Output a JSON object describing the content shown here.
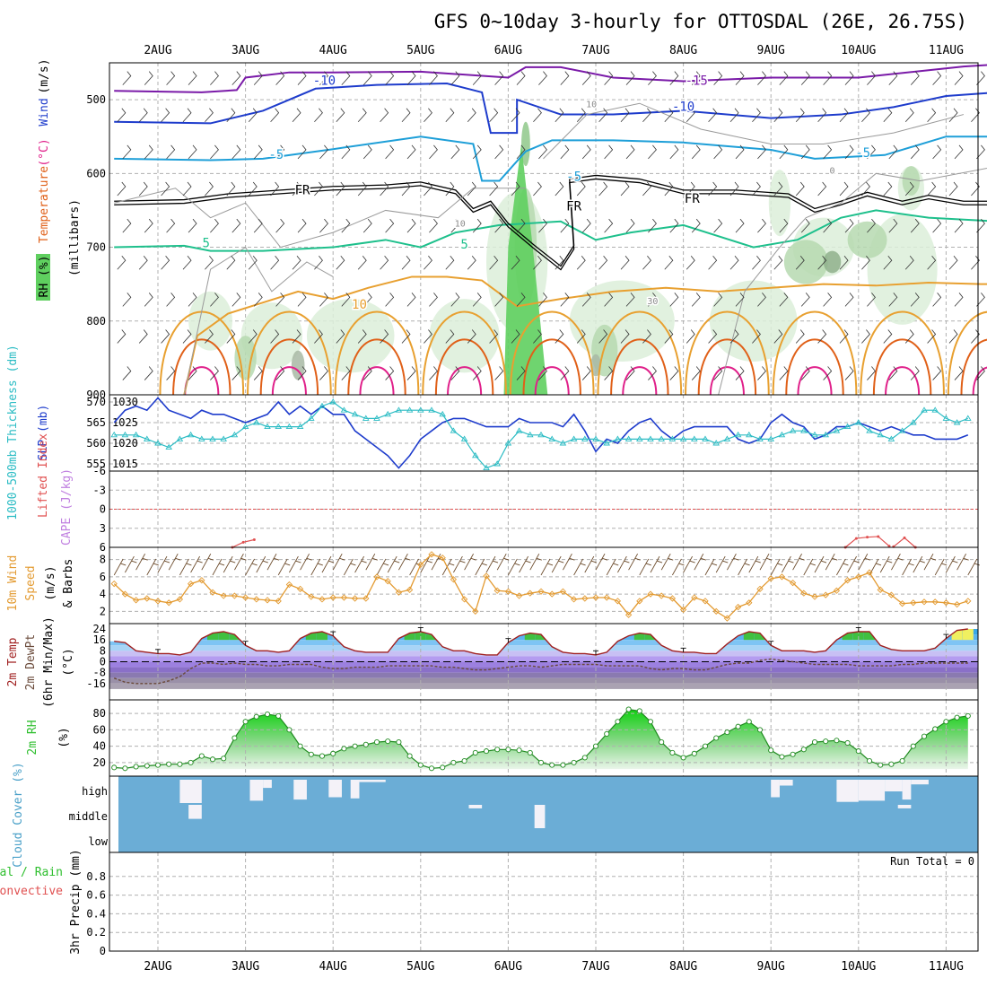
{
  "title": "GFS 0~10day 3-hourly for OTTOSDAL (26E, 26.75S)",
  "dates": [
    "2AUG",
    "3AUG",
    "4AUG",
    "5AUG",
    "6AUG",
    "7AUG",
    "8AUG",
    "9AUG",
    "10AUG",
    "11AUG"
  ],
  "colors": {
    "slp": "#1e3ccc",
    "thickness": "#2bbcc4",
    "wind10m": "#e39a30",
    "barb10m": "#6b4a2a",
    "lifted": "#e05050",
    "cape": "#c080e0",
    "rh": "#2fbf2f",
    "cloud": "#6badd6",
    "cloudgap": "#f4f2f8"
  },
  "chart_data": [
    {
      "id": "upper-air",
      "type": "contour",
      "ylabel_parts": [
        "RH (%)",
        "Temperature",
        "(°C)",
        "Wind",
        "(m/s)",
        "(millibars)"
      ],
      "yticks": [
        500,
        600,
        700,
        800,
        900
      ],
      "ylim": [
        900,
        450
      ],
      "contour_labels": [
        {
          "text": "-10",
          "x": 1.9,
          "p": 480
        },
        {
          "text": "-15",
          "x": 6.15,
          "p": 480
        },
        {
          "text": "-10",
          "x": 6.0,
          "p": 515
        },
        {
          "text": "-5",
          "x": 1.35,
          "p": 580
        },
        {
          "text": "-5",
          "x": 4.75,
          "p": 610
        },
        {
          "text": "-5",
          "x": 8.05,
          "p": 578
        },
        {
          "text": "FR",
          "x": 1.65,
          "p": 628
        },
        {
          "text": "FR",
          "x": 4.75,
          "p": 650
        },
        {
          "text": "FR",
          "x": 6.1,
          "p": 640
        },
        {
          "text": "5",
          "x": 0.55,
          "p": 700
        },
        {
          "text": "5",
          "x": 3.5,
          "p": 702
        },
        {
          "text": "10",
          "x": 2.3,
          "p": 783
        },
        {
          "text": "30",
          "x": 5.65,
          "p": 777
        },
        {
          "text": "10",
          "x": 4.95,
          "p": 510
        },
        {
          "text": "10",
          "x": 3.45,
          "p": 672
        },
        {
          "text": "0",
          "x": 7.7,
          "p": 600
        }
      ]
    },
    {
      "id": "slp-thickness",
      "type": "line",
      "ylabel_left": "1000-500mb Thickness (dm)",
      "ylabel_right": "SLP (mb)",
      "y_left_ticks": [
        555,
        560,
        565,
        570
      ],
      "y_right_ticks": [
        1015,
        1020,
        1025,
        1030
      ],
      "series": [
        {
          "name": "SLP (mb)",
          "y_axis": "right",
          "values": [
            1025,
            1028,
            1029,
            1028,
            1031,
            1028,
            1027,
            1026,
            1028,
            1027,
            1027,
            1026,
            1025,
            1026,
            1027,
            1030,
            1027,
            1029,
            1027,
            1029,
            1027,
            1027,
            1023,
            1021,
            1019,
            1017,
            1014,
            1017,
            1021,
            1023,
            1025,
            1026,
            1026,
            1025,
            1024,
            1024,
            1024,
            1026,
            1025,
            1025,
            1025,
            1024,
            1027,
            1023,
            1018,
            1021,
            1020,
            1023,
            1025,
            1026,
            1023,
            1021,
            1023,
            1024,
            1024,
            1024,
            1024,
            1021,
            1020,
            1021,
            1025,
            1027,
            1025,
            1024,
            1021,
            1022,
            1024,
            1024,
            1025,
            1024,
            1023,
            1024,
            1023,
            1022,
            1022,
            1021,
            1021,
            1021,
            1022
          ]
        },
        {
          "name": "1000-500mb Thickness (dm)",
          "y_axis": "left",
          "values": [
            562,
            562,
            562,
            561,
            560,
            559,
            561,
            562,
            561,
            561,
            561,
            562,
            564,
            565,
            564,
            564,
            564,
            564,
            566,
            569,
            570,
            568,
            567,
            566,
            566,
            567,
            568,
            568,
            568,
            568,
            567,
            563,
            561,
            557,
            554,
            555,
            560,
            563,
            562,
            562,
            561,
            560,
            561,
            561,
            561,
            560,
            561,
            561,
            561,
            561,
            561,
            561,
            561,
            561,
            561,
            560,
            561,
            562,
            562,
            561,
            561,
            562,
            563,
            563,
            562,
            562,
            563,
            564,
            565,
            563,
            562,
            561,
            563,
            565,
            568,
            568,
            566,
            565,
            566
          ]
        }
      ]
    },
    {
      "id": "stability",
      "type": "line",
      "ylabel_parts": [
        "Lifted Index",
        "CAPE (J/kg)"
      ],
      "yticks": [
        -6,
        -3,
        0,
        3,
        6
      ],
      "ytick_labels": [
        "-6",
        "-3",
        "0",
        "3",
        "6"
      ],
      "series": [
        {
          "name": "Lifted Index",
          "segments": [
            {
              "x0": 0.85,
              "values": [
                6.0,
                5.2,
                4.8
              ]
            },
            {
              "x0": 7.85,
              "values": [
                6.0,
                4.6,
                4.4,
                4.3,
                5.8
              ]
            },
            {
              "x0": 8.4,
              "values": [
                5.9,
                4.5,
                6.0
              ]
            }
          ]
        }
      ]
    },
    {
      "id": "wind10m",
      "type": "line",
      "ylabel_parts": [
        "10m Wind",
        "Speed",
        "(m/s)",
        "& Barbs"
      ],
      "yticks": [
        2,
        4,
        6,
        8
      ],
      "series": [
        {
          "name": "10m Wind Speed",
          "values": [
            5.2,
            4.0,
            3.3,
            3.5,
            3.2,
            3.0,
            3.4,
            5.2,
            5.6,
            4.2,
            3.8,
            3.8,
            3.6,
            3.4,
            3.3,
            3.2,
            5.1,
            4.6,
            3.7,
            3.4,
            3.6,
            3.6,
            3.5,
            3.5,
            6.0,
            5.5,
            4.2,
            4.5,
            7.4,
            8.6,
            8.2,
            5.7,
            3.4,
            2.0,
            6.1,
            4.4,
            4.3,
            3.8,
            4.1,
            4.3,
            4.0,
            4.3,
            3.4,
            3.5,
            3.6,
            3.6,
            3.2,
            1.6,
            3.2,
            4.0,
            3.8,
            3.5,
            2.2,
            3.6,
            3.2,
            2.0,
            1.2,
            2.5,
            3.0,
            4.6,
            5.8,
            6.0,
            5.3,
            4.1,
            3.7,
            3.9,
            4.4,
            5.6,
            6.0,
            6.5,
            4.5,
            3.9,
            2.9,
            3.0,
            3.1,
            3.1,
            3.0,
            2.8,
            3.2
          ]
        }
      ]
    },
    {
      "id": "temp2m",
      "type": "area",
      "ylabel_parts": [
        "2m Temp",
        "2m DewPt",
        "(6hr Min/Max)",
        "(°C)"
      ],
      "yticks": [
        -16,
        -8,
        0,
        8,
        16,
        24
      ],
      "series": [
        {
          "name": "2m Temp",
          "values": [
            15,
            14,
            8,
            7,
            6,
            6,
            5,
            7,
            17,
            21,
            22,
            20,
            12,
            8,
            8,
            7,
            8,
            17,
            21,
            22,
            19,
            11,
            8,
            7,
            7,
            7,
            17,
            21,
            22,
            20,
            11,
            8,
            8,
            6,
            5,
            5,
            14,
            19,
            21,
            20,
            11,
            7,
            6,
            6,
            5,
            7,
            15,
            19,
            21,
            20,
            12,
            8,
            7,
            7,
            6,
            6,
            13,
            19,
            22,
            21,
            12,
            8,
            8,
            8,
            7,
            8,
            16,
            21,
            22,
            22,
            12,
            9,
            8,
            8,
            8,
            10,
            17,
            23,
            24
          ]
        },
        {
          "name": "2m DewPt",
          "values": [
            -12,
            -15,
            -16,
            -16,
            -16,
            -14,
            -11,
            -5,
            -1,
            -1,
            -2,
            -1,
            -2,
            -2,
            -3,
            -3,
            -2,
            -2,
            -2,
            -4,
            -5,
            -5,
            -4,
            -4,
            -4,
            -3,
            -3,
            -3,
            -3,
            -3,
            -4,
            -4,
            -5,
            -6,
            -6,
            -5,
            -4,
            -3,
            -3,
            -4,
            -3,
            -2,
            -2,
            -2,
            -2,
            -3,
            -3,
            -3,
            -3,
            -5,
            -6,
            -5,
            -5,
            -6,
            -6,
            -4,
            -2,
            -1,
            -1,
            1,
            2,
            1,
            0,
            -1,
            -2,
            -2,
            -2,
            -2,
            -3,
            -3,
            -3,
            -3,
            -2,
            -2,
            -1,
            -1,
            -1,
            -1,
            -1
          ]
        }
      ]
    },
    {
      "id": "rh2m",
      "type": "area",
      "ylabel_parts": [
        "2m RH",
        "(%)"
      ],
      "yticks": [
        20,
        40,
        60,
        80
      ],
      "series": [
        {
          "name": "2m RH",
          "values": [
            14,
            13,
            15,
            16,
            17,
            18,
            18,
            20,
            28,
            24,
            25,
            50,
            70,
            76,
            79,
            77,
            60,
            40,
            30,
            28,
            31,
            37,
            40,
            42,
            45,
            46,
            45,
            28,
            17,
            13,
            14,
            20,
            22,
            32,
            34,
            36,
            36,
            35,
            32,
            20,
            17,
            17,
            20,
            26,
            40,
            55,
            70,
            85,
            83,
            70,
            45,
            32,
            26,
            31,
            40,
            50,
            57,
            64,
            70,
            60,
            35,
            27,
            30,
            36,
            45,
            46,
            47,
            44,
            34,
            22,
            17,
            18,
            22,
            40,
            52,
            61,
            70,
            75,
            77
          ]
        }
      ]
    },
    {
      "id": "cloud",
      "type": "heatmap",
      "ylabel": "Cloud Cover (%)",
      "levels": [
        "high",
        "middle",
        "low"
      ],
      "gaps": [
        {
          "level": "high",
          "x0": 0.25,
          "x1": 0.5,
          "amount": 1.0
        },
        {
          "level": "high",
          "x0": 1.05,
          "x1": 1.2,
          "amount": 0.9
        },
        {
          "level": "high",
          "x0": 1.2,
          "x1": 1.3,
          "amount": 0.35
        },
        {
          "level": "high",
          "x0": 1.55,
          "x1": 1.7,
          "amount": 0.85
        },
        {
          "level": "high",
          "x0": 1.95,
          "x1": 2.1,
          "amount": 0.75
        },
        {
          "level": "high",
          "x0": 2.2,
          "x1": 2.3,
          "amount": 0.8
        },
        {
          "level": "high",
          "x0": 2.3,
          "x1": 2.6,
          "amount": 0.1
        },
        {
          "level": "high",
          "x0": 7.0,
          "x1": 7.1,
          "amount": 0.75
        },
        {
          "level": "high",
          "x0": 7.1,
          "x1": 7.25,
          "amount": 0.25
        },
        {
          "level": "high",
          "x0": 7.75,
          "x1": 8.0,
          "amount": 0.95
        },
        {
          "level": "high",
          "x0": 8.0,
          "x1": 8.3,
          "amount": 0.9
        },
        {
          "level": "high",
          "x0": 8.3,
          "x1": 8.5,
          "amount": 0.5
        },
        {
          "level": "high",
          "x0": 8.5,
          "x1": 8.6,
          "amount": 0.85
        },
        {
          "level": "high",
          "x0": 8.6,
          "x1": 8.8,
          "amount": 0.2
        },
        {
          "level": "middle",
          "x0": 0.35,
          "x1": 0.5,
          "amount": 0.6
        },
        {
          "level": "middle",
          "x0": 3.55,
          "x1": 3.7,
          "amount": 0.15
        },
        {
          "level": "middle",
          "x0": 4.3,
          "x1": 4.42,
          "amount": 1.0
        },
        {
          "level": "middle",
          "x0": 8.45,
          "x1": 8.6,
          "amount": 0.15
        }
      ]
    },
    {
      "id": "precip",
      "type": "bar",
      "ylabel_parts": [
        "Total / Rain",
        "Convective",
        "3hr Precip (mm)"
      ],
      "yticks": [
        0,
        0.2,
        0.4,
        0.6,
        0.8
      ],
      "ylim": [
        0,
        1
      ],
      "annotation": "Run Total = 0",
      "values": []
    }
  ]
}
